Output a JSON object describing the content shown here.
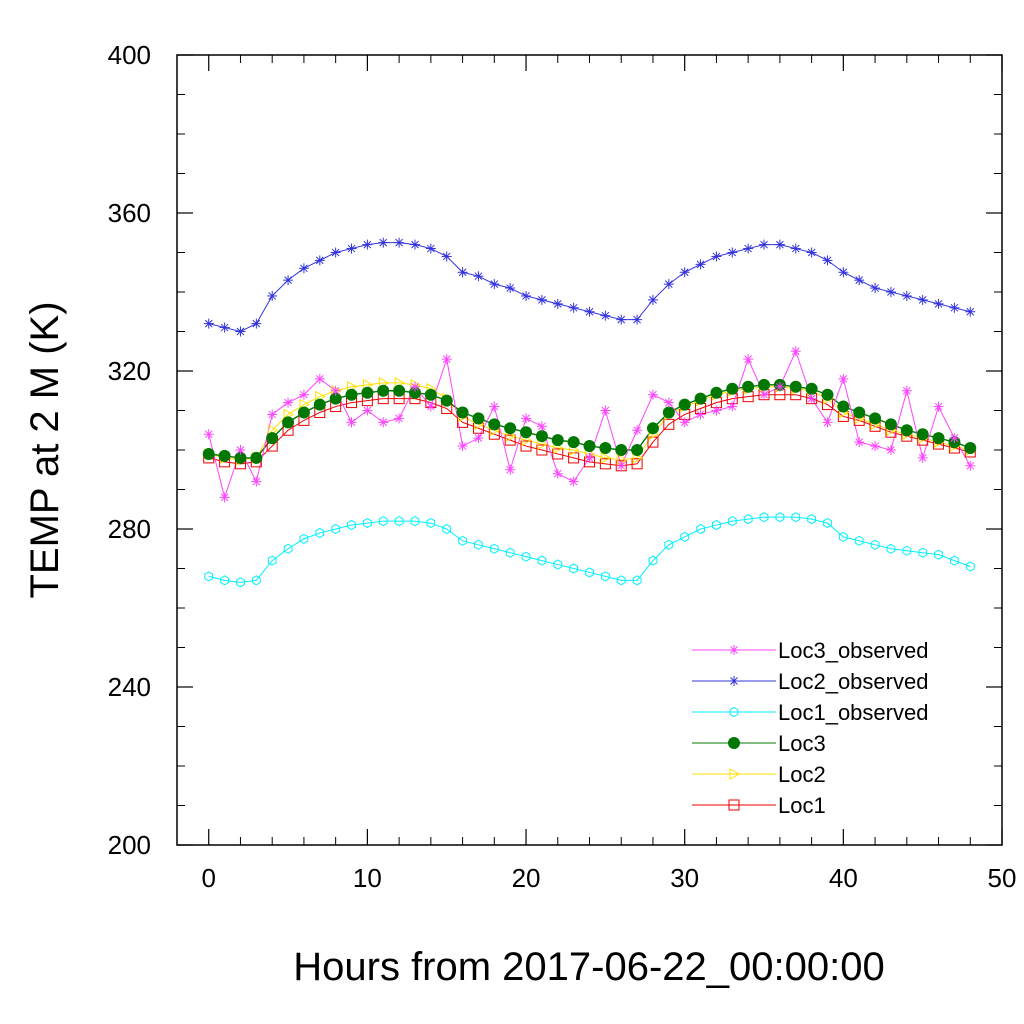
{
  "chart_data": {
    "type": "line",
    "xlabel": "Hours from 2017-06-22_00:00:00",
    "ylabel": "TEMP at 2 M (K)",
    "xlim": [
      -2,
      50
    ],
    "ylim": [
      200,
      400
    ],
    "x_ticks": [
      0,
      10,
      20,
      30,
      40,
      50
    ],
    "y_ticks": [
      200,
      240,
      280,
      320,
      360,
      400
    ],
    "x_tick_labels": [
      "0",
      "10",
      "20",
      "30",
      "40",
      "50"
    ],
    "y_tick_labels": [
      "200",
      "240",
      "280",
      "320",
      "360",
      "400"
    ],
    "grid": false,
    "legend_position": "bottom-right",
    "x": [
      0,
      1,
      2,
      3,
      4,
      5,
      6,
      7,
      8,
      9,
      10,
      11,
      12,
      13,
      14,
      15,
      16,
      17,
      18,
      19,
      20,
      21,
      22,
      23,
      24,
      25,
      26,
      27,
      28,
      29,
      30,
      31,
      32,
      33,
      34,
      35,
      36,
      37,
      38,
      39,
      40,
      41,
      42,
      43,
      44,
      45,
      46,
      47,
      48
    ],
    "series": [
      {
        "name": "Loc3_observed",
        "color": "#ff44ff",
        "marker": "asterisk",
        "values": [
          304,
          288,
          300,
          292,
          309,
          312,
          314,
          318,
          315,
          307,
          310,
          307,
          308,
          316,
          311,
          323,
          301,
          303,
          311,
          295,
          308,
          306,
          294,
          292,
          298,
          310,
          296,
          305,
          314,
          312,
          307,
          309,
          310,
          311,
          323,
          314,
          316,
          325,
          313,
          307,
          318,
          302,
          301,
          300,
          315,
          298,
          311,
          303,
          296
        ]
      },
      {
        "name": "Loc2_observed",
        "color": "#3333dd",
        "marker": "asterisk",
        "values": [
          332,
          331,
          330,
          332,
          339,
          343,
          346,
          348,
          350,
          351,
          352,
          352.5,
          352.5,
          352,
          351,
          349,
          345,
          344,
          342,
          341,
          339,
          338,
          337,
          336,
          335,
          334,
          333,
          333,
          338,
          342,
          345,
          347,
          349,
          350,
          351,
          352,
          352,
          351,
          350,
          348,
          345,
          343,
          341,
          340,
          339,
          338,
          337,
          336,
          335
        ]
      },
      {
        "name": "Loc1_observed",
        "color": "#00f0ff",
        "marker": "hexagon",
        "values": [
          268,
          267,
          266.5,
          267,
          272,
          275,
          277.5,
          279,
          280,
          281,
          281.5,
          282,
          282,
          282,
          281.5,
          280,
          277,
          276,
          275,
          274,
          273,
          272,
          271,
          270,
          269,
          268,
          267,
          267,
          272,
          276,
          278,
          280,
          281,
          282,
          282.5,
          283,
          283,
          283,
          282.5,
          281.5,
          278,
          277,
          276,
          275,
          274.5,
          274,
          273.5,
          272,
          270.5
        ]
      },
      {
        "name": "Loc3",
        "color": "#007700",
        "marker": "dot",
        "values": [
          299,
          298.5,
          298,
          298,
          303,
          307,
          309.5,
          311.5,
          313,
          314,
          314.5,
          315,
          315,
          314.5,
          314,
          312.5,
          309.5,
          308,
          306.5,
          305.5,
          304.5,
          303.5,
          302.5,
          302,
          301,
          300.5,
          300,
          300,
          305.5,
          309.5,
          311.5,
          313,
          314.5,
          315.5,
          316,
          316.5,
          316.5,
          316,
          315.5,
          314,
          311,
          309.5,
          308,
          306.5,
          305,
          304,
          303,
          302,
          300.5
        ]
      },
      {
        "name": "Loc2",
        "color": "#ffe000",
        "marker": "triangle-right",
        "values": [
          299,
          298,
          297.5,
          298,
          305,
          309,
          311.5,
          313.5,
          315,
          316,
          316.5,
          317,
          317,
          316.5,
          315.5,
          313,
          308.5,
          306.5,
          305,
          303.5,
          302.5,
          301.5,
          300.5,
          300,
          299,
          298,
          297.5,
          298,
          304,
          309,
          311,
          312.5,
          314,
          315,
          315.5,
          316,
          316,
          315.5,
          315,
          313,
          309.5,
          308,
          306.5,
          305,
          304,
          303,
          302,
          301,
          300
        ]
      },
      {
        "name": "Loc1",
        "color": "#ee0000",
        "marker": "square",
        "values": [
          298,
          297,
          296.5,
          297,
          301,
          305,
          307.5,
          309.5,
          311,
          312,
          312.5,
          313,
          313,
          313,
          312,
          310.5,
          307,
          305.5,
          304,
          302.5,
          301,
          300,
          299,
          298,
          297,
          296.5,
          296,
          296.5,
          302,
          306.5,
          309,
          310.5,
          312,
          313,
          313.5,
          314,
          314,
          314,
          313,
          311.5,
          308.5,
          307.5,
          306,
          304.5,
          303.5,
          302.5,
          301.5,
          300.5,
          299.5
        ]
      }
    ]
  }
}
